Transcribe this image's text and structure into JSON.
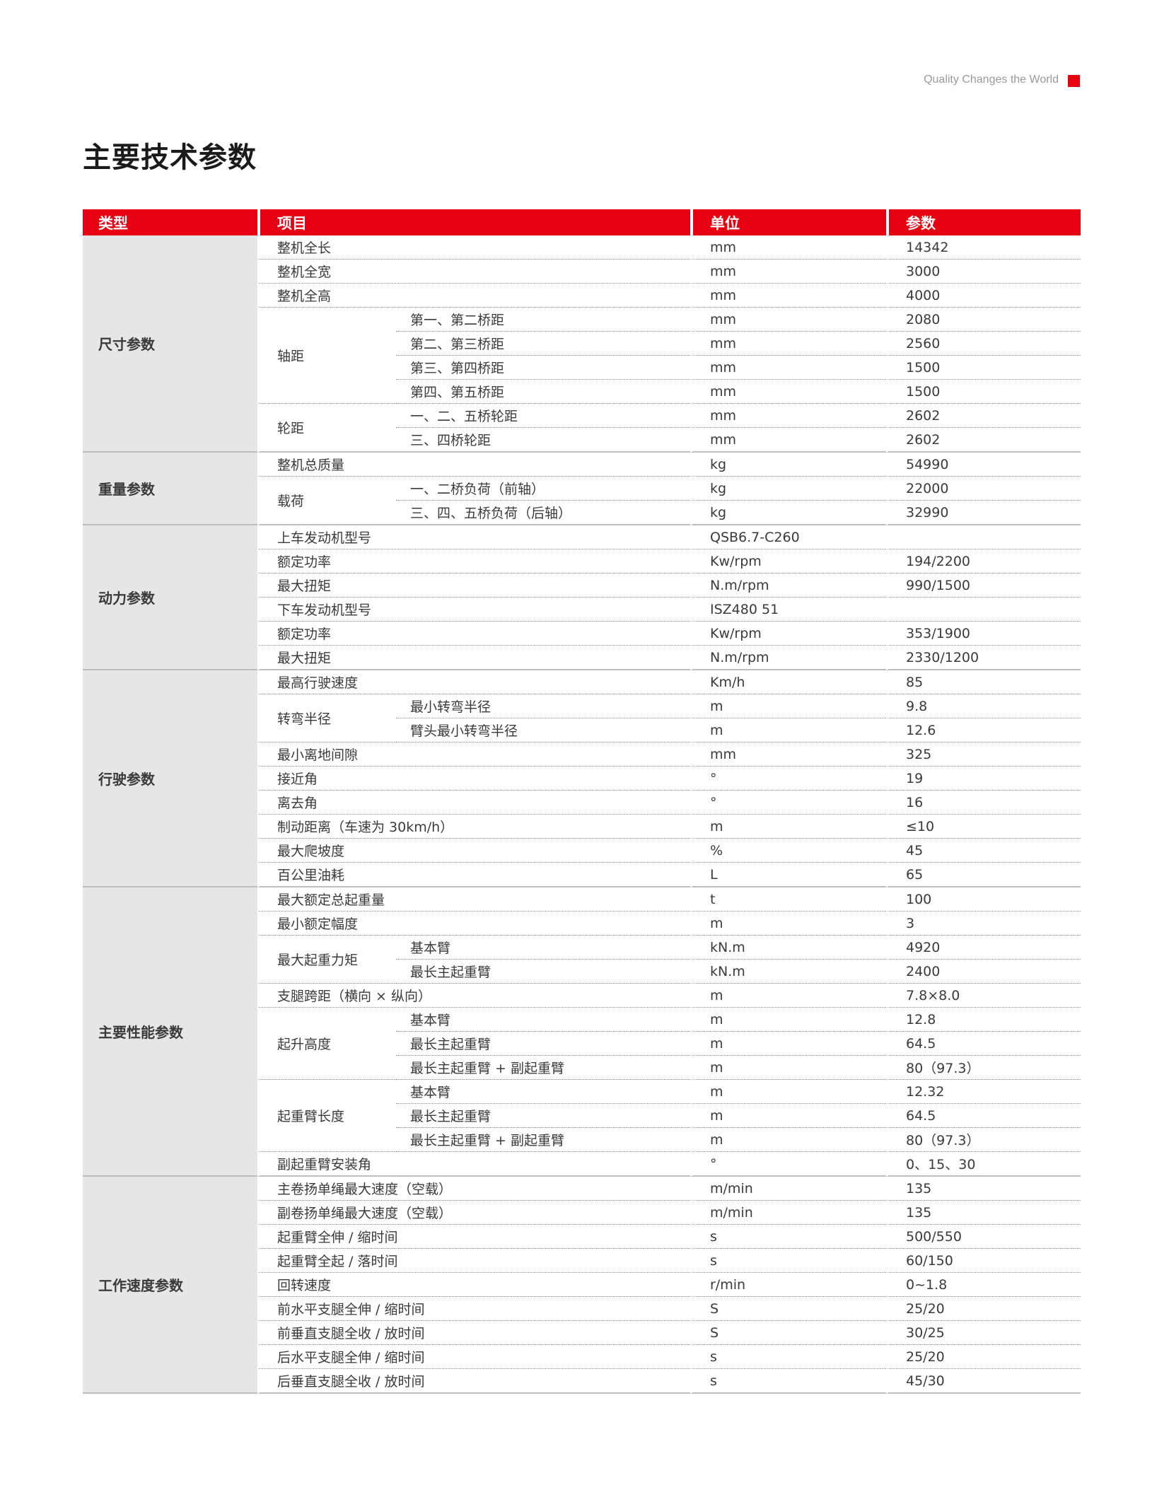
{
  "tagline": "Quality Changes the World",
  "title": "主要技术参数",
  "colors": {
    "header": "#e60012",
    "type_bg": "#e6e6e6"
  },
  "headers": [
    "类型",
    "项目",
    "单位",
    "参数"
  ],
  "sections": [
    {
      "type": "尺寸参数",
      "rows": [
        {
          "item": "整机全长",
          "unit": "mm",
          "value": "14342"
        },
        {
          "item": "整机全宽",
          "unit": "mm",
          "value": "3000"
        },
        {
          "item": "整机全高",
          "unit": "mm",
          "value": "4000"
        },
        {
          "group": "轴距",
          "subs": [
            {
              "sub": "第一、第二桥距",
              "unit": "mm",
              "value": "2080"
            },
            {
              "sub": "第二、第三桥距",
              "unit": "mm",
              "value": "2560"
            },
            {
              "sub": "第三、第四桥距",
              "unit": "mm",
              "value": "1500"
            },
            {
              "sub": "第四、第五桥距",
              "unit": "mm",
              "value": "1500"
            }
          ]
        },
        {
          "group": "轮距",
          "subs": [
            {
              "sub": "一、二、五桥轮距",
              "unit": "mm",
              "value": "2602"
            },
            {
              "sub": "三、四桥轮距",
              "unit": "mm",
              "value": "2602"
            }
          ]
        }
      ]
    },
    {
      "type": "重量参数",
      "rows": [
        {
          "item": "整机总质量",
          "unit": "kg",
          "value": "54990"
        },
        {
          "group": "载荷",
          "subs": [
            {
              "sub": "一、二桥负荷（前轴）",
              "unit": "kg",
              "value": "22000"
            },
            {
              "sub": "三、四、五桥负荷（后轴）",
              "unit": "kg",
              "value": "32990"
            }
          ]
        }
      ]
    },
    {
      "type": "动力参数",
      "rows": [
        {
          "item": "上车发动机型号",
          "unit": "QSB6.7-C260",
          "value": ""
        },
        {
          "item": "额定功率",
          "unit": "Kw/rpm",
          "value": "194/2200"
        },
        {
          "item": "最大扭矩",
          "unit": "N.m/rpm",
          "value": "990/1500"
        },
        {
          "item": "下车发动机型号",
          "unit": "ISZ480 51",
          "value": ""
        },
        {
          "item": "额定功率",
          "unit": "Kw/rpm",
          "value": "353/1900"
        },
        {
          "item": "最大扭矩",
          "unit": "N.m/rpm",
          "value": "2330/1200"
        }
      ]
    },
    {
      "type": "行驶参数",
      "rows": [
        {
          "item": "最高行驶速度",
          "unit": "Km/h",
          "value": "85"
        },
        {
          "group": "转弯半径",
          "subs": [
            {
              "sub": "最小转弯半径",
              "unit": "m",
              "value": "9.8"
            },
            {
              "sub": "臂头最小转弯半径",
              "unit": "m",
              "value": "12.6"
            }
          ]
        },
        {
          "item": "最小离地间隙",
          "unit": "mm",
          "value": "325"
        },
        {
          "item": "接近角",
          "unit": "°",
          "value": "19"
        },
        {
          "item": "离去角",
          "unit": "°",
          "value": "16"
        },
        {
          "item": "制动距离（车速为 30km/h）",
          "unit": "m",
          "value": "≤10"
        },
        {
          "item": "最大爬坡度",
          "unit": "%",
          "value": "45"
        },
        {
          "item": "百公里油耗",
          "unit": "L",
          "value": "65"
        }
      ]
    },
    {
      "type": "主要性能参数",
      "rows": [
        {
          "item": "最大额定总起重量",
          "unit": "t",
          "value": "100"
        },
        {
          "item": "最小额定幅度",
          "unit": "m",
          "value": "3"
        },
        {
          "group": "最大起重力矩",
          "subs": [
            {
              "sub": "基本臂",
              "unit": "kN.m",
              "value": "4920"
            },
            {
              "sub": "最长主起重臂",
              "unit": "kN.m",
              "value": "2400"
            }
          ]
        },
        {
          "item": "支腿跨距（横向 × 纵向）",
          "unit": "m",
          "value": "7.8×8.0"
        },
        {
          "group": "起升高度",
          "subs": [
            {
              "sub": "基本臂",
              "unit": "m",
              "value": "12.8"
            },
            {
              "sub": "最长主起重臂",
              "unit": "m",
              "value": "64.5"
            },
            {
              "sub": "最长主起重臂 + 副起重臂",
              "unit": "m",
              "value": "80（97.3）"
            }
          ]
        },
        {
          "group": "起重臂长度",
          "subs": [
            {
              "sub": "基本臂",
              "unit": "m",
              "value": "12.32"
            },
            {
              "sub": "最长主起重臂",
              "unit": "m",
              "value": "64.5"
            },
            {
              "sub": "最长主起重臂 + 副起重臂",
              "unit": "m",
              "value": "80（97.3）"
            }
          ]
        },
        {
          "item": "副起重臂安装角",
          "unit": "°",
          "value": "0、15、30"
        }
      ]
    },
    {
      "type": "工作速度参数",
      "rows": [
        {
          "item": "主卷扬单绳最大速度（空载）",
          "unit": "m/min",
          "value": "135"
        },
        {
          "item": "副卷扬单绳最大速度（空载）",
          "unit": "m/min",
          "value": "135"
        },
        {
          "item": "起重臂全伸 / 缩时间",
          "unit": "s",
          "value": "500/550"
        },
        {
          "item": "起重臂全起 / 落时间",
          "unit": "s",
          "value": "60/150"
        },
        {
          "item": "回转速度",
          "unit": "r/min",
          "value": "0~1.8"
        },
        {
          "item": "前水平支腿全伸 / 缩时间",
          "unit": "S",
          "value": "25/20"
        },
        {
          "item": "前垂直支腿全收 / 放时间",
          "unit": "S",
          "value": "30/25"
        },
        {
          "item": "后水平支腿全伸 / 缩时间",
          "unit": "s",
          "value": "25/20"
        },
        {
          "item": "后垂直支腿全收 / 放时间",
          "unit": "s",
          "value": "45/30"
        }
      ]
    }
  ]
}
